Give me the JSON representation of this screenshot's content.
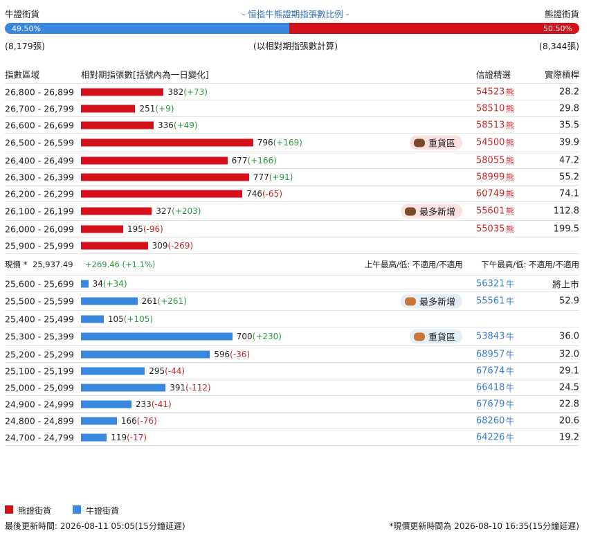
{
  "header": {
    "bull_label": "牛證街貨",
    "title": "- 恒指牛熊證期指張數比例 -",
    "bear_label": "熊證街貨"
  },
  "ratio": {
    "bull": {
      "value": 49.5,
      "label": "49.50%"
    },
    "bear": {
      "value": 50.5,
      "label": "50.50%"
    },
    "bull_count": "(8,179張)",
    "note": "(以相對期指張數計算)",
    "bear_count": "(8,344張)"
  },
  "table": {
    "columns": [
      "指數區域",
      "相對期指張數[括號內為一日變化]",
      "信證精選",
      "實際槓桿"
    ],
    "bear_rows": [
      {
        "range": "26,800 - 26,899",
        "count": 382,
        "change": "(+73)",
        "code": "54523",
        "kind": "熊",
        "leverage": "28.2"
      },
      {
        "range": "26,700 - 26,799",
        "count": 251,
        "change": "(+9)",
        "code": "58510",
        "kind": "熊",
        "leverage": "29.8"
      },
      {
        "range": "26,600 - 26,699",
        "count": 336,
        "change": "(+49)",
        "code": "58513",
        "kind": "熊",
        "leverage": "35.5"
      },
      {
        "range": "26,500 - 26,599",
        "count": 796,
        "change": "(+169)",
        "badge": "重貨區",
        "code": "54500",
        "kind": "熊",
        "leverage": "39.9"
      },
      {
        "range": "26,400 - 26,499",
        "count": 677,
        "change": "(+166)",
        "code": "58055",
        "kind": "熊",
        "leverage": "47.2"
      },
      {
        "range": "26,300 - 26,399",
        "count": 777,
        "change": "(+91)",
        "code": "58999",
        "kind": "熊",
        "leverage": "55.2"
      },
      {
        "range": "26,200 - 26,299",
        "count": 746,
        "change": "(-65)",
        "code": "60749",
        "kind": "熊",
        "leverage": "74.1"
      },
      {
        "range": "26,100 - 26,199",
        "count": 327,
        "change": "(+203)",
        "badge": "最多新增",
        "code": "55601",
        "kind": "熊",
        "leverage": "112.8"
      },
      {
        "range": "26,000 - 26,099",
        "count": 195,
        "change": "(-96)",
        "code": "55035",
        "kind": "熊",
        "leverage": "199.5"
      },
      {
        "range": "25,900 - 25,999",
        "count": 309,
        "change": "(-269)"
      }
    ],
    "current": {
      "label": "現價 *",
      "price": "25,937.49",
      "change": "+269.46 (+1.1%)",
      "am": "上午最高/低: 不適用/不適用",
      "pm": "下午最高/低: 不適用/不適用"
    },
    "bull_rows": [
      {
        "range": "25,600 - 25,699",
        "count": 34,
        "change": "(+34)",
        "code": "56321",
        "kind": "牛",
        "leverage": "將上市"
      },
      {
        "range": "25,500 - 25,599",
        "count": 261,
        "change": "(+261)",
        "badge": "最多新增",
        "code": "55561",
        "kind": "牛",
        "leverage": "52.9"
      },
      {
        "range": "25,400 - 25,499",
        "count": 105,
        "change": "(+105)"
      },
      {
        "range": "25,300 - 25,399",
        "count": 700,
        "change": "(+230)",
        "badge": "重貨區",
        "code": "53843",
        "kind": "牛",
        "leverage": "36.0"
      },
      {
        "range": "25,200 - 25,299",
        "count": 596,
        "change": "(-36)",
        "code": "68957",
        "kind": "牛",
        "leverage": "32.0"
      },
      {
        "range": "25,100 - 25,199",
        "count": 295,
        "change": "(-44)",
        "code": "67674",
        "kind": "牛",
        "leverage": "29.1"
      },
      {
        "range": "25,000 - 25,099",
        "count": 391,
        "change": "(-112)",
        "code": "66418",
        "kind": "牛",
        "leverage": "24.5"
      },
      {
        "range": "24,900 - 24,999",
        "count": 233,
        "change": "(-41)",
        "code": "67679",
        "kind": "牛",
        "leverage": "22.8"
      },
      {
        "range": "24,800 - 24,899",
        "count": 166,
        "change": "(-76)",
        "code": "68260",
        "kind": "牛",
        "leverage": "20.6"
      },
      {
        "range": "24,700 - 24,799",
        "count": 119,
        "change": "(-17)",
        "code": "64226",
        "kind": "牛",
        "leverage": "19.2"
      }
    ]
  },
  "legend": [
    "熊證街貨",
    "牛證街貨"
  ],
  "footer": {
    "left": "最後更新時間: 2026-08-11 05:05(15分鐘延遲)",
    "right": "*現價更新時間為 2026-08-10 16:35(15分鐘延遲)"
  }
}
